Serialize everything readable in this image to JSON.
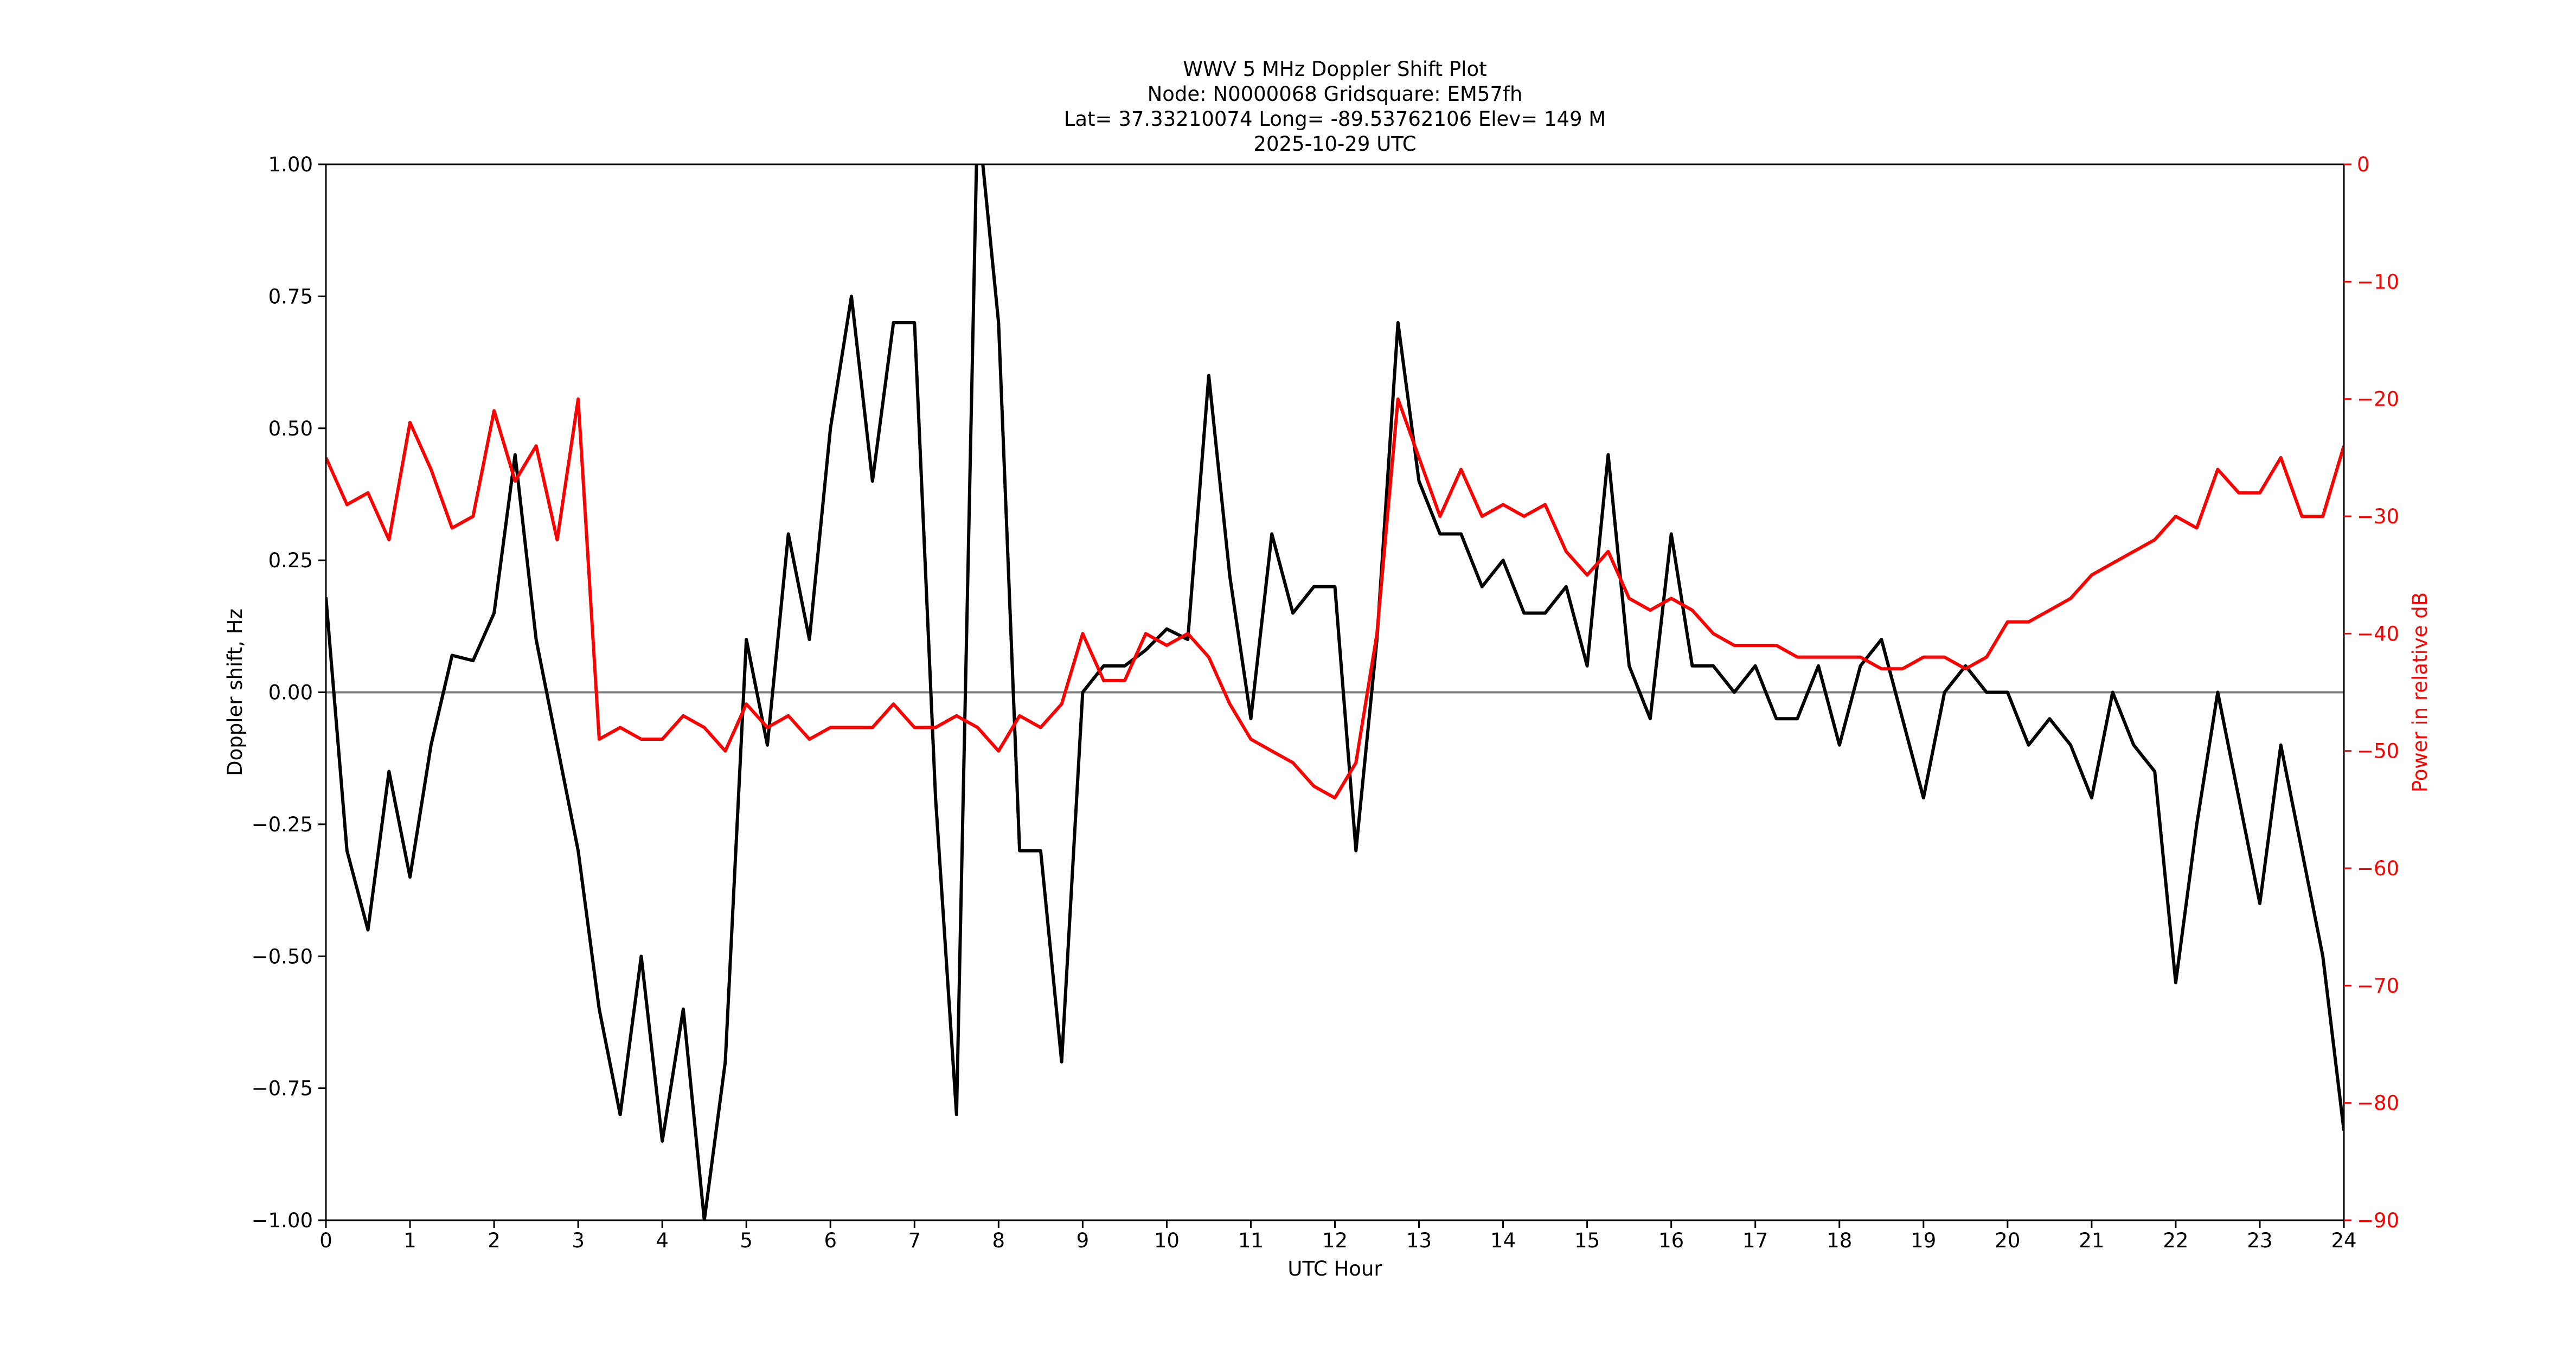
{
  "chart_data": {
    "type": "line",
    "title": [
      "WWV 5 MHz Doppler Shift Plot",
      "Node:  N0000068     Gridsquare:  EM57fh",
      "Lat= 37.33210074    Long= -89.53762106    Elev= 149 M",
      "2025-10-29  UTC"
    ],
    "xlabel": "UTC Hour",
    "ylabel": "Doppler shift, Hz",
    "y2label": "Power in relative dB",
    "xlim": [
      0,
      24
    ],
    "xticks": [
      0,
      1,
      2,
      3,
      4,
      5,
      6,
      7,
      8,
      9,
      10,
      11,
      12,
      13,
      14,
      15,
      16,
      17,
      18,
      19,
      20,
      21,
      22,
      23,
      24
    ],
    "ylim": [
      -1,
      1
    ],
    "yticks": [
      {
        "value": -1,
        "label": "−1.00"
      },
      {
        "value": -0.75,
        "label": "−0.75"
      },
      {
        "value": -0.5,
        "label": "−0.50"
      },
      {
        "value": -0.25,
        "label": "−0.25"
      },
      {
        "value": 0,
        "label": "0.00"
      },
      {
        "value": 0.25,
        "label": "0.25"
      },
      {
        "value": 0.5,
        "label": "0.50"
      },
      {
        "value": 0.75,
        "label": "0.75"
      },
      {
        "value": 1,
        "label": "1.00"
      }
    ],
    "y2lim": [
      -90,
      0
    ],
    "y2ticks": [
      {
        "value": -90,
        "label": "−90"
      },
      {
        "value": -80,
        "label": "−80"
      },
      {
        "value": -70,
        "label": "−70"
      },
      {
        "value": -60,
        "label": "−60"
      },
      {
        "value": -50,
        "label": "−50"
      },
      {
        "value": -40,
        "label": "−40"
      },
      {
        "value": -30,
        "label": "−30"
      },
      {
        "value": -20,
        "label": "−20"
      },
      {
        "value": -10,
        "label": "−10"
      },
      0
    ],
    "y2color": "#ff0000",
    "reference_line": 0,
    "reference_color": "#808080",
    "x": [
      0,
      0.25,
      0.5,
      0.75,
      1,
      1.25,
      1.5,
      1.75,
      2,
      2.25,
      2.5,
      2.75,
      3,
      3.25,
      3.5,
      3.75,
      4,
      4.25,
      4.5,
      4.75,
      5,
      5.25,
      5.5,
      5.75,
      6,
      6.25,
      6.5,
      6.75,
      7,
      7.25,
      7.5,
      7.75,
      8,
      8.25,
      8.5,
      8.75,
      9,
      9.25,
      9.5,
      9.75,
      10,
      10.25,
      10.5,
      10.75,
      11,
      11.25,
      11.5,
      11.75,
      12,
      12.25,
      12.5,
      12.75,
      13,
      13.25,
      13.5,
      13.75,
      14,
      14.25,
      14.5,
      14.75,
      15,
      15.25,
      15.5,
      15.75,
      16,
      16.25,
      16.5,
      16.75,
      17,
      17.25,
      17.5,
      17.75,
      18,
      18.25,
      18.5,
      18.75,
      19,
      19.25,
      19.5,
      19.75,
      20,
      20.25,
      20.5,
      20.75,
      21,
      21.25,
      21.5,
      21.75,
      22,
      22.25,
      22.5,
      22.75,
      23,
      23.25,
      23.5,
      23.75,
      24
    ],
    "series": [
      {
        "name": "Doppler shift",
        "color": "#000000",
        "values": [
          0.18,
          -0.3,
          -0.45,
          -0.15,
          -0.35,
          -0.1,
          0.07,
          0.06,
          0.15,
          0.45,
          0.1,
          -0.1,
          -0.3,
          -0.6,
          -0.8,
          -0.5,
          -0.85,
          -0.6,
          -1.0,
          -0.7,
          0.1,
          -0.1,
          0.3,
          0.1,
          0.5,
          0.75,
          0.4,
          0.7,
          0.7,
          -0.2,
          -0.8,
          1.1,
          0.7,
          -0.3,
          -0.3,
          -0.7,
          0.0,
          0.05,
          0.05,
          0.08,
          0.12,
          0.1,
          0.6,
          0.22,
          -0.05,
          0.3,
          0.15,
          0.2,
          0.2,
          -0.3,
          0.1,
          0.7,
          0.4,
          0.3,
          0.3,
          0.2,
          0.25,
          0.15,
          0.15,
          0.2,
          0.05,
          0.45,
          0.05,
          -0.05,
          0.3,
          0.05,
          0.05,
          0.0,
          0.05,
          -0.05,
          -0.05,
          0.05,
          -0.1,
          0.05,
          0.1,
          -0.05,
          -0.2,
          0.0,
          0.05,
          0.0,
          0.0,
          -0.1,
          -0.05,
          -0.1,
          -0.2,
          0.0,
          -0.1,
          -0.15,
          -0.55,
          -0.25,
          0.0,
          -0.2,
          -0.4,
          -0.1,
          -0.3,
          -0.5,
          -0.83
        ]
      },
      {
        "name": "Power",
        "color": "#ff0000",
        "axis": "y2",
        "values": [
          -25,
          -29,
          -28,
          -32,
          -22,
          -26,
          -31,
          -30,
          -21,
          -27,
          -24,
          -32,
          -20,
          -49,
          -48,
          -49,
          -49,
          -47,
          -48,
          -50,
          -46,
          -48,
          -47,
          -49,
          -48,
          -48,
          -48,
          -46,
          -48,
          -48,
          -47,
          -48,
          -50,
          -47,
          -48,
          -46,
          -40,
          -44,
          -44,
          -40,
          -41,
          -40,
          -42,
          -46,
          -49,
          -50,
          -51,
          -53,
          -54,
          -51,
          -40,
          -20,
          -25,
          -30,
          -26,
          -30,
          -29,
          -30,
          -29,
          -33,
          -35,
          -33,
          -37,
          -38,
          -37,
          -38,
          -40,
          -41,
          -41,
          -41,
          -42,
          -42,
          -42,
          -42,
          -43,
          -43,
          -42,
          -42,
          -43,
          -42,
          -39,
          -39,
          -38,
          -37,
          -35,
          -34,
          -33,
          -32,
          -30,
          -31,
          -26,
          -28,
          -28,
          -25,
          -30,
          -30,
          -24
        ]
      }
    ]
  }
}
